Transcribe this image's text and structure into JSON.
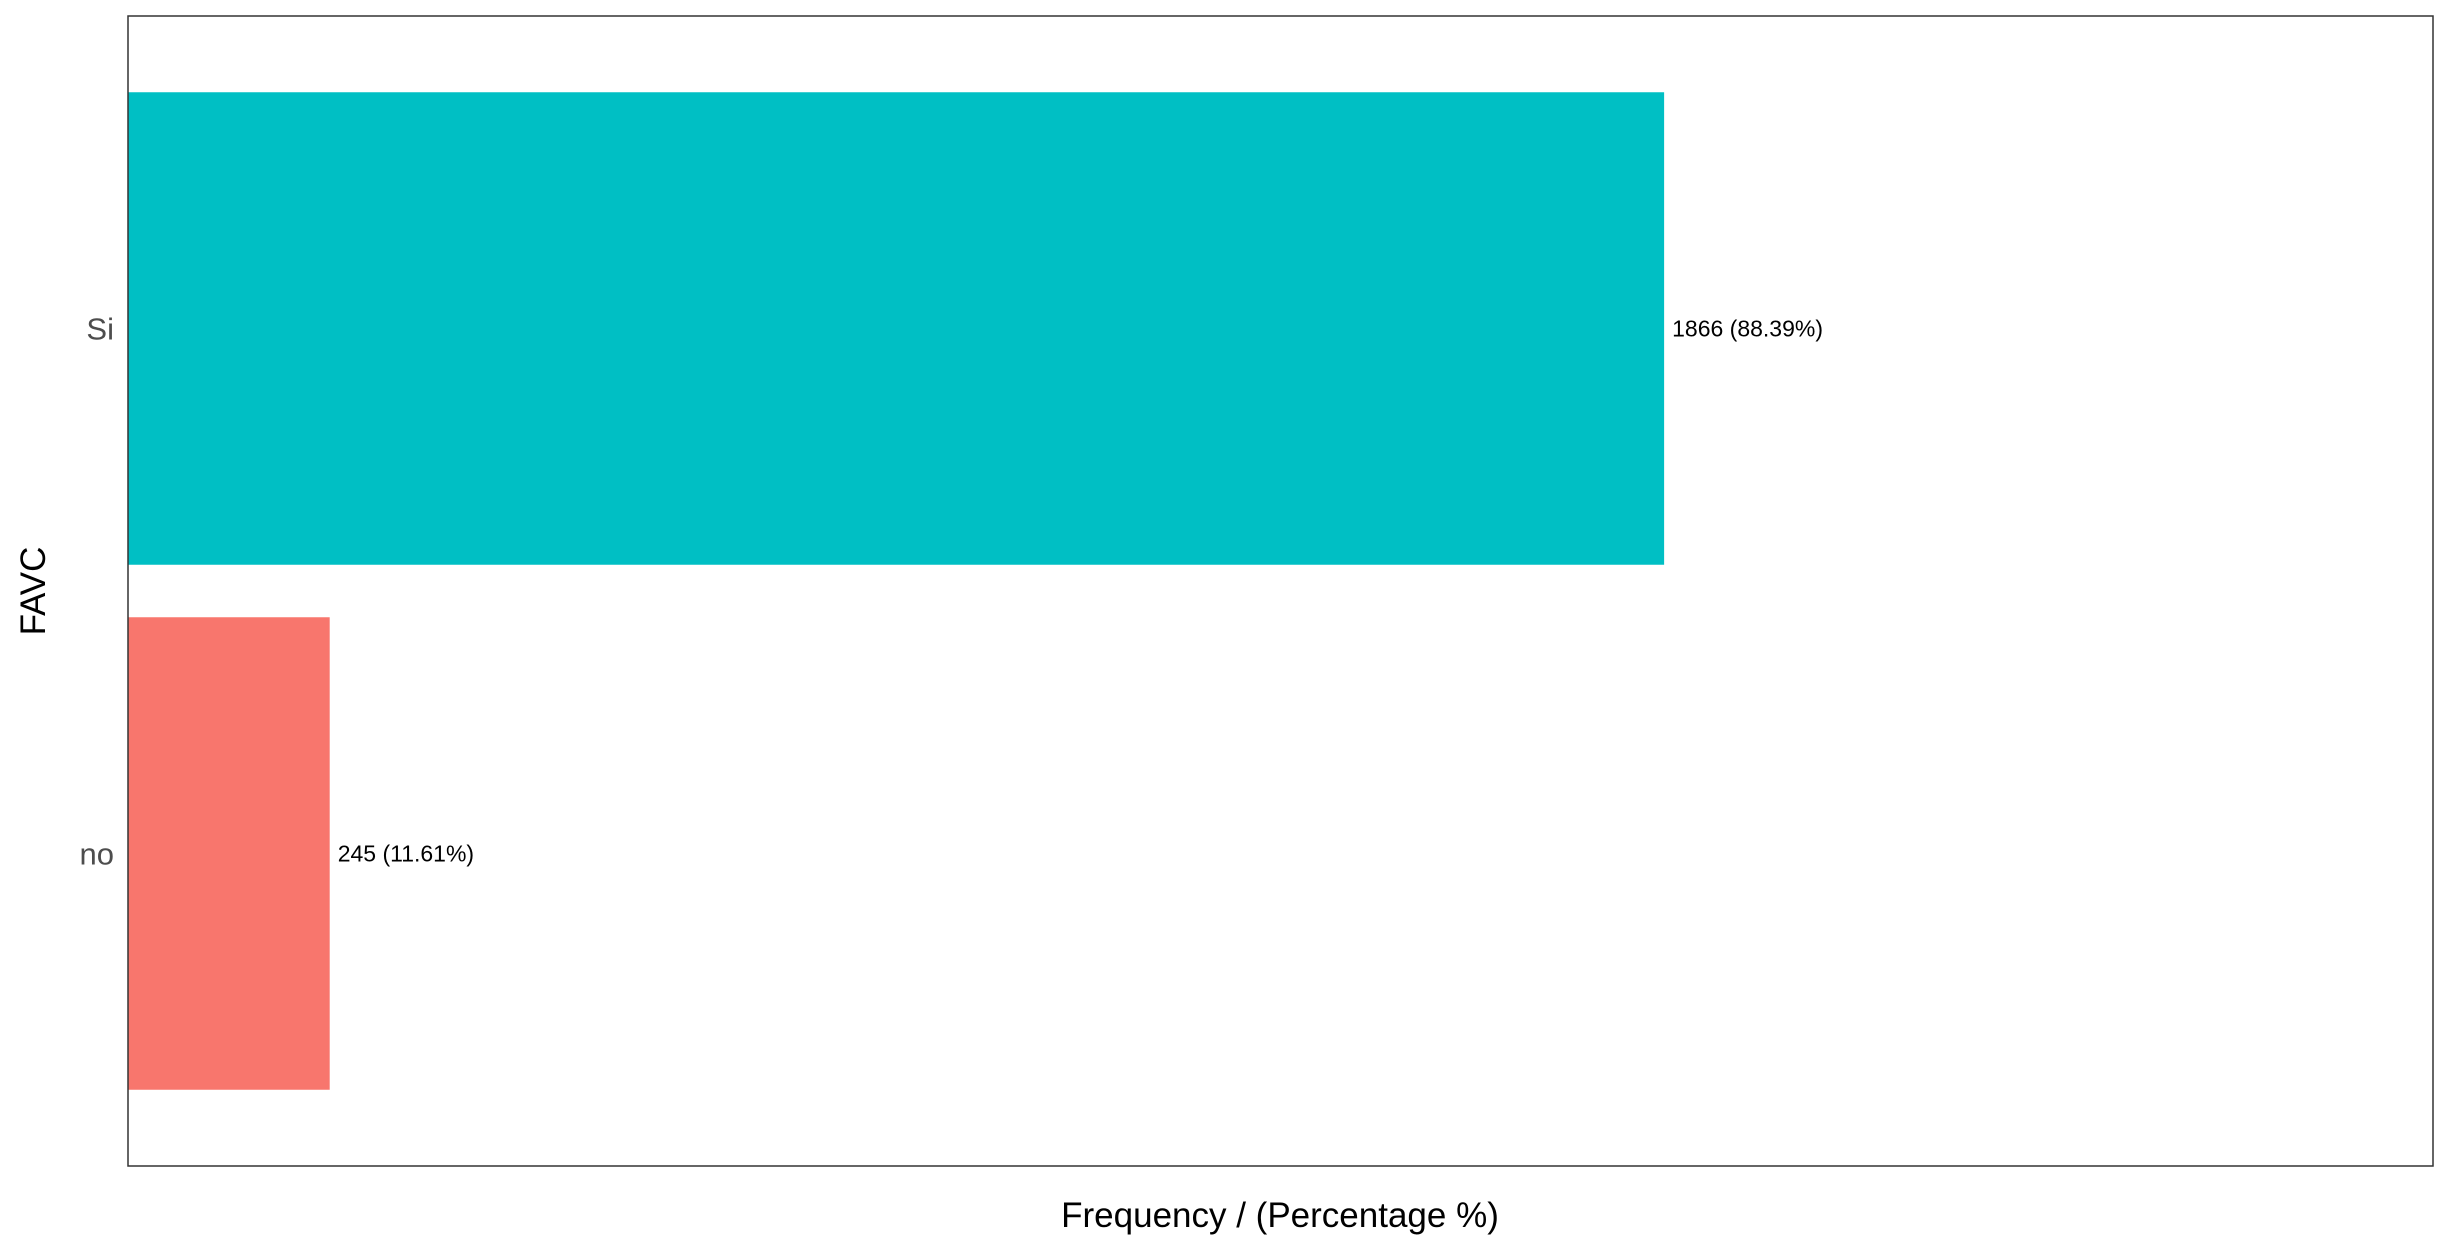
{
  "chart_data": {
    "type": "bar",
    "orientation": "horizontal",
    "title": "",
    "xlabel": "Frequency / (Percentage %)",
    "ylabel": "FAVC",
    "categories": [
      "no",
      "Si"
    ],
    "values": [
      245,
      1866
    ],
    "percentages": [
      11.61,
      88.39
    ],
    "data_labels": [
      "245 (11.61%)",
      "1866 (88.39%)"
    ],
    "colors": [
      "#F8766D",
      "#00BFC4"
    ],
    "xlim": [
      0,
      2800
    ],
    "grid": false,
    "x_ticks_visible": false,
    "legend": "none"
  }
}
